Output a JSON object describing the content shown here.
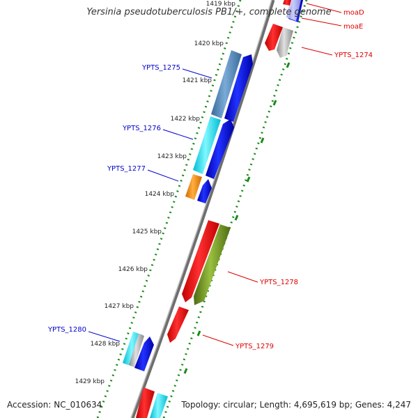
{
  "title": "Yersinia pseudotuberculosis PB1/+, complete genome",
  "footer": {
    "accession": "Accession: NC_010634",
    "topology": "Topology: circular; Length: 4,695,619 bp; Genes: 4,247"
  },
  "colors": {
    "forward_label": "#0000cc",
    "reverse_label": "#dd0000",
    "ruler_dots": "#1a8a1a",
    "backbone": "#888888"
  },
  "ticks": [
    {
      "label": "1419 kbp"
    },
    {
      "label": "1420 kbp"
    },
    {
      "label": "1421 kbp"
    },
    {
      "label": "1422 kbp"
    },
    {
      "label": "1423 kbp"
    },
    {
      "label": "1424 kbp"
    },
    {
      "label": "1425 kbp"
    },
    {
      "label": "1426 kbp"
    },
    {
      "label": "1427 kbp"
    },
    {
      "label": "1428 kbp"
    },
    {
      "label": "1429 kbp"
    }
  ],
  "gene_labels": {
    "moaD": "moaD",
    "moaE": "moaE",
    "YPTS_1274": "YPTS_1274",
    "YPTS_1275": "YPTS_1275",
    "YPTS_1276": "YPTS_1276",
    "YPTS_1277": "YPTS_1277",
    "YPTS_1278": "YPTS_1278",
    "YPTS_1279": "YPTS_1279",
    "YPTS_1280": "YPTS_1280"
  }
}
